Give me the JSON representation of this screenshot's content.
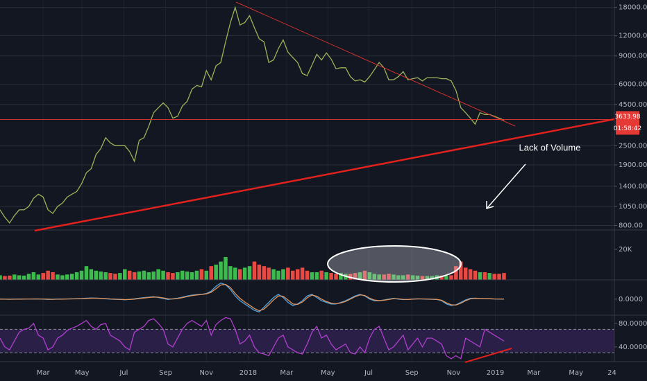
{
  "chart_data": [
    {
      "type": "line",
      "log_scale": true,
      "color": "#9cb35a",
      "xlim": [
        0,
        128
      ],
      "xticks": [
        {
          "value": 9,
          "label": "Mar"
        },
        {
          "value": 17.1,
          "label": "May"
        },
        {
          "value": 25.8,
          "label": "Jul"
        },
        {
          "value": 34.5,
          "label": "Sep"
        },
        {
          "value": 43,
          "label": "Nov"
        },
        {
          "value": 51.7,
          "label": "2018"
        },
        {
          "value": 59.7,
          "label": "Mar"
        },
        {
          "value": 68.3,
          "label": "May"
        },
        {
          "value": 76.8,
          "label": "Jul"
        },
        {
          "value": 85.8,
          "label": "Sep"
        },
        {
          "value": 94.5,
          "label": "Nov"
        },
        {
          "value": 103.2,
          "label": "2019"
        },
        {
          "value": 111.2,
          "label": "Mar"
        },
        {
          "value": 120,
          "label": "May"
        },
        {
          "value": 127.5,
          "label": "24"
        }
      ],
      "ylim": [
        750,
        20000
      ],
      "yticks": [
        {
          "value": 18000,
          "label": "18000.00"
        },
        {
          "value": 12000,
          "label": "12000.00"
        },
        {
          "value": 9000,
          "label": "9000.00"
        },
        {
          "value": 6000,
          "label": "6000.00"
        },
        {
          "value": 4500,
          "label": "4500.00"
        },
        {
          "value": 2500,
          "label": "2500.00"
        },
        {
          "value": 1900,
          "label": "1900.00"
        },
        {
          "value": 1400,
          "label": "1400.00"
        },
        {
          "value": 1050,
          "label": "1050.00"
        },
        {
          "value": 800,
          "label": "800.00"
        }
      ],
      "grid": true,
      "values": [
        1000,
        900,
        830,
        920,
        1000,
        1000,
        1050,
        1180,
        1250,
        1200,
        1000,
        950,
        1050,
        1100,
        1200,
        1250,
        1300,
        1450,
        1700,
        1800,
        2200,
        2400,
        2800,
        2600,
        2500,
        2500,
        2500,
        2300,
        2000,
        2700,
        2800,
        3300,
        4000,
        4300,
        4600,
        4300,
        3700,
        3800,
        4400,
        4700,
        5600,
        5900,
        5800,
        7300,
        6400,
        7800,
        8200,
        11000,
        14500,
        18000,
        14000,
        14500,
        16000,
        13500,
        11500,
        11000,
        8200,
        8500,
        10000,
        11300,
        9500,
        8800,
        8200,
        7000,
        6800,
        7900,
        9200,
        8500,
        9400,
        8600,
        7500,
        7600,
        7600,
        6700,
        6300,
        6400,
        6200,
        6700,
        7400,
        8200,
        7600,
        6400,
        6400,
        6700,
        7200,
        6400,
        6500,
        6600,
        6300,
        6600,
        6600,
        6600,
        6500,
        6500,
        6300,
        5500,
        4300,
        4000,
        3700,
        3400,
        4000,
        3900,
        3900,
        3800,
        3700,
        3600
      ],
      "last_price": {
        "value": 3633.98,
        "label": "3633.98"
      },
      "countdown": "01:58:42",
      "annotation": "Lack of Volume"
    },
    {
      "type": "bar",
      "up_color": "#3dbb4e",
      "down_color": "#e84a43",
      "ylim": [
        0,
        32700
      ],
      "yticks": [
        {
          "value": 20000,
          "label": "20K"
        }
      ],
      "values": [
        3000,
        2500,
        2800,
        3500,
        3000,
        2800,
        4000,
        5000,
        3500,
        4500,
        6000,
        5000,
        3500,
        3000,
        3500,
        4000,
        5000,
        6000,
        9000,
        7000,
        6000,
        5500,
        5000,
        4500,
        4000,
        4500,
        7000,
        6000,
        5000,
        5500,
        6000,
        5000,
        5500,
        7000,
        6000,
        5000,
        4500,
        5000,
        6000,
        5500,
        5000,
        6000,
        7000,
        6000,
        9000,
        10000,
        12000,
        15000,
        9000,
        8000,
        7000,
        8000,
        9000,
        12000,
        10000,
        9000,
        8000,
        7000,
        6000,
        7000,
        8000,
        6000,
        7000,
        8000,
        6000,
        5000,
        5000,
        6000,
        5000,
        4500,
        4000,
        4500,
        4000,
        4000,
        4500,
        5000,
        6000,
        5000,
        4000,
        3500,
        3500,
        4000,
        3500,
        3000,
        3000,
        3500,
        3000,
        2800,
        2500,
        2500,
        2500,
        3000,
        2800,
        2600,
        3000,
        9000,
        12000,
        8000,
        7000,
        6000,
        5000,
        5000,
        4500,
        4000,
        4000,
        4500
      ]
    },
    {
      "type": "line",
      "ylim": [
        -1000,
        1200
      ],
      "yticks": [
        {
          "value": 0,
          "label": "0.0000"
        }
      ],
      "series": [
        {
          "color": "#4fa3e0",
          "values": [
            5,
            -5,
            -10,
            0,
            5,
            8,
            10,
            15,
            10,
            0,
            -15,
            -10,
            5,
            10,
            15,
            20,
            25,
            40,
            60,
            70,
            60,
            40,
            20,
            0,
            -10,
            -20,
            -40,
            -10,
            20,
            60,
            90,
            120,
            150,
            100,
            40,
            -20,
            20,
            60,
            120,
            200,
            250,
            280,
            300,
            350,
            500,
            800,
            1000,
            900,
            600,
            200,
            -100,
            -300,
            -500,
            -700,
            -800,
            -500,
            -200,
            100,
            300,
            100,
            -200,
            -400,
            -300,
            -100,
            200,
            300,
            100,
            -100,
            -200,
            -300,
            -300,
            -200,
            -100,
            50,
            200,
            300,
            200,
            0,
            -100,
            -100,
            -50,
            0,
            50,
            0,
            -30,
            -20,
            10,
            20,
            10,
            0,
            -10,
            -20,
            -100,
            -300,
            -400,
            -350,
            -200,
            -50,
            50,
            60,
            40,
            30,
            20,
            10,
            5,
            0
          ]
        },
        {
          "color": "#e0935a",
          "values": [
            0,
            0,
            -5,
            -5,
            0,
            5,
            8,
            10,
            12,
            8,
            0,
            -8,
            -5,
            2,
            8,
            14,
            20,
            30,
            45,
            58,
            62,
            52,
            35,
            15,
            0,
            -12,
            -28,
            -25,
            0,
            35,
            70,
            100,
            130,
            120,
            80,
            20,
            10,
            40,
            90,
            160,
            220,
            260,
            290,
            330,
            430,
            650,
            880,
            920,
            720,
            350,
            50,
            -180,
            -380,
            -580,
            -720,
            -620,
            -350,
            -50,
            200,
            180,
            -50,
            -300,
            -330,
            -180,
            80,
            250,
            180,
            0,
            -150,
            -250,
            -290,
            -240,
            -140,
            0,
            150,
            260,
            230,
            60,
            -60,
            -90,
            -70,
            -20,
            30,
            20,
            -10,
            -20,
            0,
            15,
            12,
            3,
            -5,
            -15,
            -70,
            -230,
            -350,
            -370,
            -260,
            -100,
            20,
            50,
            45,
            35,
            25,
            15,
            8,
            3
          ]
        }
      ]
    },
    {
      "type": "line",
      "ylim": [
        15,
        94
      ],
      "yticks": [
        {
          "value": 80,
          "label": "80.0000"
        },
        {
          "value": 40,
          "label": "40.0000"
        }
      ],
      "bands": [
        30,
        70
      ],
      "band_color": "#2a1f47",
      "series": [
        {
          "color": "#b13fcf",
          "values": [
            55,
            40,
            35,
            50,
            65,
            70,
            72,
            80,
            60,
            55,
            35,
            40,
            55,
            60,
            68,
            72,
            75,
            80,
            85,
            75,
            70,
            78,
            80,
            60,
            55,
            50,
            40,
            35,
            65,
            70,
            75,
            85,
            88,
            80,
            70,
            45,
            40,
            55,
            70,
            80,
            85,
            80,
            75,
            85,
            60,
            78,
            85,
            90,
            88,
            70,
            45,
            50,
            60,
            40,
            30,
            28,
            25,
            40,
            55,
            60,
            40,
            35,
            30,
            28,
            45,
            65,
            75,
            55,
            60,
            45,
            35,
            40,
            45,
            30,
            28,
            40,
            30,
            55,
            70,
            75,
            55,
            35,
            40,
            50,
            60,
            35,
            45,
            55,
            40,
            55,
            55,
            50,
            45,
            25,
            20,
            25,
            20,
            55,
            50,
            45,
            40,
            70,
            65,
            60,
            55,
            50
          ]
        }
      ]
    }
  ]
}
